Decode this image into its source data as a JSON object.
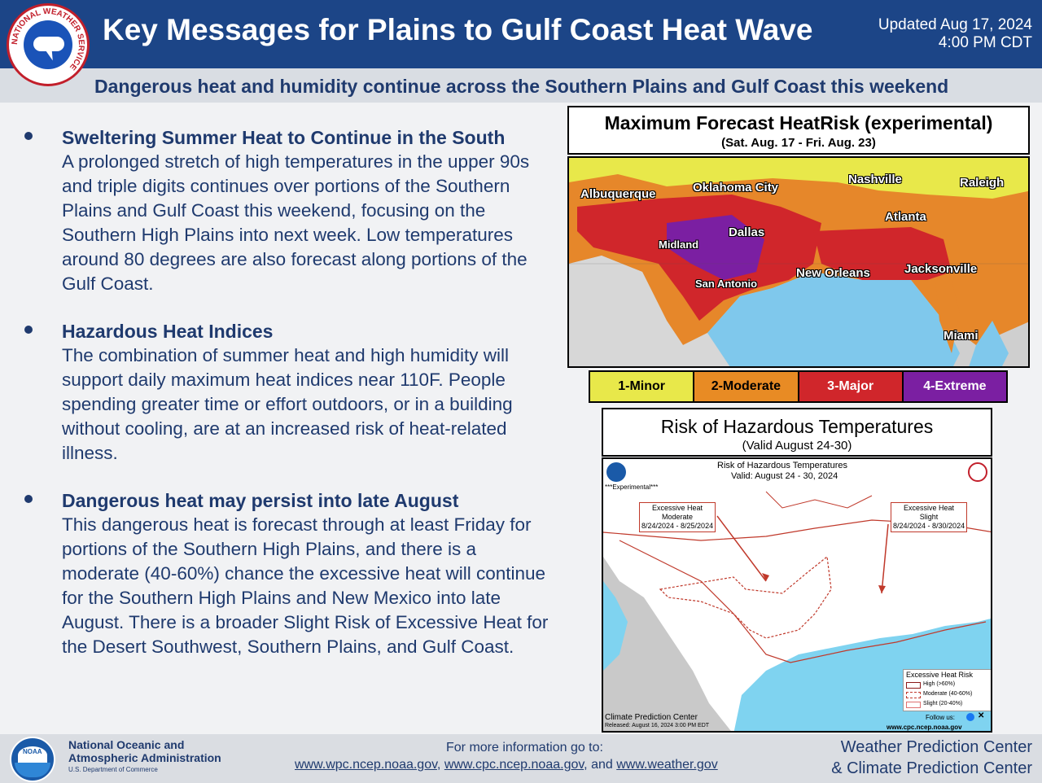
{
  "header": {
    "logo_ring_text": "NATIONAL WEATHER SERVICE",
    "title": "Key Messages for Plains to Gulf Coast Heat Wave",
    "updated_line1": "Updated Aug 17, 2024",
    "updated_line2": "4:00 PM CDT",
    "subtitle": "Dangerous heat and humidity continue across the Southern Plains and Gulf Coast this weekend"
  },
  "messages": [
    {
      "heading": "Sweltering Summer Heat to Continue in the South",
      "body": "A prolonged stretch of high temperatures in the upper 90s and triple digits continues over portions of the Southern Plains and Gulf Coast this weekend, focusing on the Southern High Plains into next week. Low temperatures around 80 degrees are also forecast along portions of the Gulf Coast."
    },
    {
      "heading": "Hazardous Heat Indices",
      "body": "The combination of summer heat and high humidity will support daily maximum heat indices near 110F. People spending greater time or effort outdoors, or in a building without cooling, are at an increased risk of heat-related illness."
    },
    {
      "heading": "Dangerous heat may persist into late August",
      "body": "This dangerous heat is forecast through at least Friday for portions of the Southern High Plains, and there is a moderate (40-60%) chance the excessive heat will continue for the Southern High Plains and New Mexico into late August. There is a broader Slight Risk of Excessive Heat for the Desert Southwest, Southern Plains, and Gulf Coast."
    }
  ],
  "heatrisk": {
    "title": "Maximum Forecast HeatRisk (experimental)",
    "dates": "(Sat. Aug. 17 - Fri. Aug. 23)",
    "cities": [
      "Albuquerque",
      "Oklahoma City",
      "Nashville",
      "Raleigh",
      "Atlanta",
      "Dallas",
      "Midland",
      "New Orleans",
      "Jacksonville",
      "San Antonio",
      "Miami"
    ],
    "legend": [
      {
        "label": "1-Minor",
        "color": "#e8e84a",
        "text_color": "#000000"
      },
      {
        "label": "2-Moderate",
        "color": "#e88b24",
        "text_color": "#000000"
      },
      {
        "label": "3-Major",
        "color": "#d0262b",
        "text_color": "#ffffff"
      },
      {
        "label": "4-Extreme",
        "color": "#7b1fa2",
        "text_color": "#ffffff"
      }
    ]
  },
  "hazard": {
    "title": "Risk of Hazardous Temperatures",
    "dates": "(Valid August 24-30)",
    "map_title": "Risk of Hazardous Temperatures",
    "map_valid": "Valid: August 24 - 30, 2024",
    "experimental": "***Experimental***",
    "box1": {
      "line1": "Excessive Heat",
      "line2": "Moderate",
      "line3": "8/24/2024 - 8/25/2024"
    },
    "box2": {
      "line1": "Excessive Heat",
      "line2": "Slight",
      "line3": "8/24/2024 - 8/30/2024"
    },
    "legend_title": "Excessive Heat Risk",
    "legend_items": [
      "High (>60%)",
      "Moderate (40-60%)",
      "Slight (20-40%)"
    ],
    "source": "Climate Prediction Center",
    "released": "Released: August 16, 2024 3:00 PM EDT",
    "follow": "Follow us:",
    "url": "www.cpc.ncep.noaa.gov"
  },
  "footer": {
    "noaa_line1": "National Oceanic and",
    "noaa_line2": "Atmospheric Administration",
    "noaa_dept": "U.S. Department of Commerce",
    "noaa_word": "NOAA",
    "more_info": "For more information go to:",
    "link1": "www.wpc.ncep.noaa.gov",
    "link2": "www.cpc.ncep.noaa.gov",
    "link3": "www.weather.gov",
    "sep1": ", ",
    "sep2": ", and ",
    "center1": "Weather Prediction Center",
    "center2": "& Climate Prediction Center"
  }
}
